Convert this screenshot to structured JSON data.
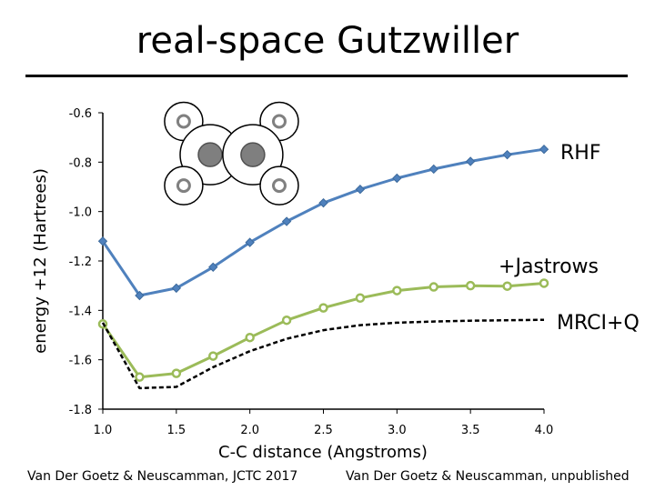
{
  "slide": {
    "title": "real-space Gutzwiller",
    "credit_left": "Van Der Goetz & Neuscamman, JCTC 2017",
    "credit_right": "Van Der Goetz & Neuscamman, unpublished"
  },
  "chart_data": {
    "type": "line",
    "title": "",
    "xlabel": "C-C distance (Angstroms)",
    "ylabel": "energy +12 (Hartrees)",
    "xlim": [
      1.0,
      4.0
    ],
    "ylim": [
      -1.8,
      -0.6
    ],
    "xticks": [
      1.0,
      1.5,
      2.0,
      2.5,
      3.0,
      3.5,
      4.0
    ],
    "xtick_labels": [
      "1.0",
      "1.5",
      "2.0",
      "2.5",
      "3.0",
      "3.5",
      "4.0"
    ],
    "yticks": [
      -0.6,
      -0.8,
      -1.0,
      -1.2,
      -1.4,
      -1.6,
      -1.8
    ],
    "ytick_labels": [
      "-0.6",
      "-0.8",
      "-1.0",
      "-1.2",
      "-1.4",
      "-1.6",
      "-1.8"
    ],
    "grid": false,
    "series": [
      {
        "name": "RHF",
        "color": "#4f81bd",
        "marker": "diamond",
        "style": "solid",
        "x": [
          1.0,
          1.25,
          1.5,
          1.75,
          2.0,
          2.25,
          2.5,
          2.75,
          3.0,
          3.25,
          3.5,
          3.75,
          4.0
        ],
        "y": [
          -1.12,
          -1.34,
          -1.31,
          -1.225,
          -1.125,
          -1.04,
          -0.965,
          -0.91,
          -0.865,
          -0.828,
          -0.797,
          -0.77,
          -0.748
        ]
      },
      {
        "name": "+Jastrows",
        "color": "#9bbb59",
        "marker": "circle",
        "style": "solid",
        "x": [
          1.0,
          1.25,
          1.5,
          1.75,
          2.0,
          2.25,
          2.5,
          2.75,
          3.0,
          3.25,
          3.5,
          3.75,
          4.0
        ],
        "y": [
          -1.455,
          -1.67,
          -1.655,
          -1.585,
          -1.51,
          -1.44,
          -1.39,
          -1.35,
          -1.32,
          -1.305,
          -1.3,
          -1.302,
          -1.29
        ]
      },
      {
        "name": "MRCI+Q",
        "color": "#000000",
        "marker": "none",
        "style": "dashed",
        "x": [
          1.0,
          1.25,
          1.5,
          1.75,
          2.0,
          2.25,
          2.5,
          2.75,
          3.0,
          3.25,
          3.5,
          3.75,
          4.0
        ],
        "y": [
          -1.45,
          -1.715,
          -1.71,
          -1.63,
          -1.565,
          -1.515,
          -1.48,
          -1.46,
          -1.45,
          -1.445,
          -1.442,
          -1.44,
          -1.438
        ]
      }
    ],
    "inset": {
      "name": "molecule-diagram",
      "atoms": [
        {
          "kind": "small",
          "cx": 1.55,
          "cy": -0.635
        },
        {
          "kind": "small",
          "cx": 2.2,
          "cy": -0.635
        },
        {
          "kind": "large",
          "cx": 1.73,
          "cy": -0.77
        },
        {
          "kind": "large",
          "cx": 2.02,
          "cy": -0.77
        },
        {
          "kind": "small",
          "cx": 1.55,
          "cy": -0.895
        },
        {
          "kind": "small",
          "cx": 2.2,
          "cy": -0.895
        }
      ]
    }
  }
}
